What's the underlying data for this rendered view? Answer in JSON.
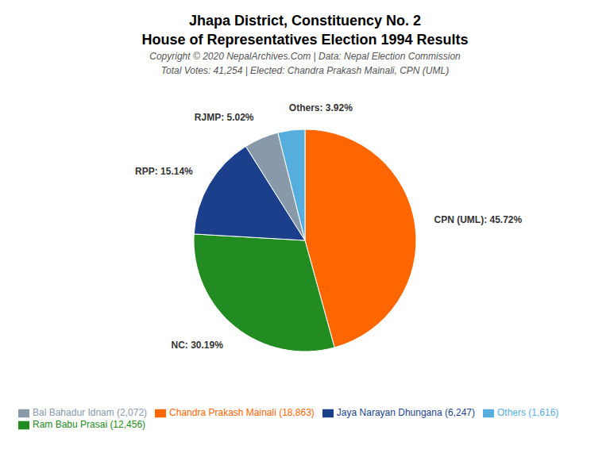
{
  "chart_data": {
    "type": "pie",
    "title": [
      "Jhapa District, Constituency No. 2",
      "House of Representatives Election 1994 Results"
    ],
    "annotations": [
      "Copyright © 2020 NepalArchives.Com | Data: Nepal Election Commission",
      "Total Votes: 41,254 | Elected: Chandra Prakash Mainali, CPN (UML)"
    ],
    "categories": [
      "Chandra Prakash Mainali (18,863)",
      "Ram Babu Prasai (12,456)",
      "Jaya Narayan Dhungana (6,247)",
      "Bal Bahadur Idnam (2,072)",
      "Others (1,616)"
    ],
    "values": [
      45.72,
      30.19,
      15.14,
      5.02,
      3.92
    ],
    "value_labels": [
      "CPN (UML): 45.72%",
      "NC: 30.19%",
      "RPP: 15.14%",
      "RJMP: 5.02%",
      "Others: 3.92%"
    ],
    "colors": [
      "#FF6600",
      "#228B22",
      "#1C3F8C",
      "#8899AA",
      "#56AEDE"
    ],
    "data_labels": true,
    "legend": "lower left"
  }
}
